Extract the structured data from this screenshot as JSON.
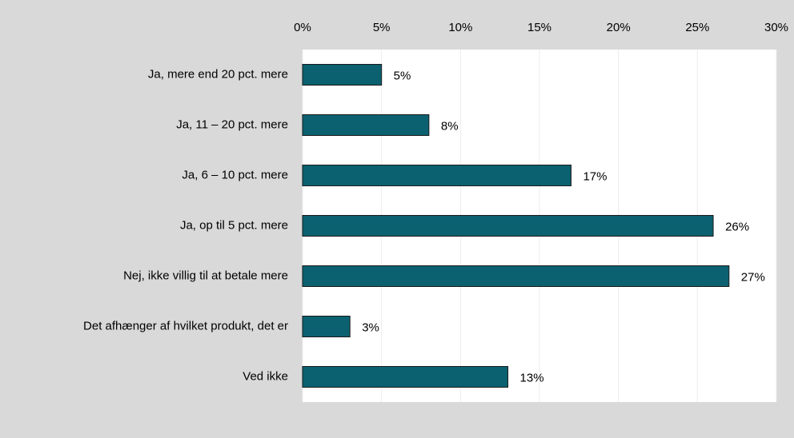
{
  "chart_data": {
    "type": "barh",
    "categories": [
      "Ja, mere end 20 pct. mere",
      "Ja, 11 – 20 pct. mere",
      "Ja, 6 – 10 pct. mere",
      "Ja, op til 5 pct. mere",
      "Nej, ikke villig til at betale mere",
      "Det afhænger af hvilket produkt, det er",
      "Ved ikke"
    ],
    "values": [
      5,
      8,
      17,
      26,
      27,
      3,
      13
    ],
    "value_labels": [
      "5%",
      "8%",
      "17%",
      "26%",
      "27%",
      "3%",
      "13%"
    ],
    "color": "#0b6170",
    "xlim": [
      0,
      30
    ],
    "xticks": [
      {
        "value": 0,
        "label": "0%"
      },
      {
        "value": 5,
        "label": "5%"
      },
      {
        "value": 10,
        "label": "10%"
      },
      {
        "value": 15,
        "label": "15%"
      },
      {
        "value": 20,
        "label": "20%"
      },
      {
        "value": 25,
        "label": "25%"
      },
      {
        "value": 30,
        "label": "30%"
      }
    ],
    "grid": true
  }
}
